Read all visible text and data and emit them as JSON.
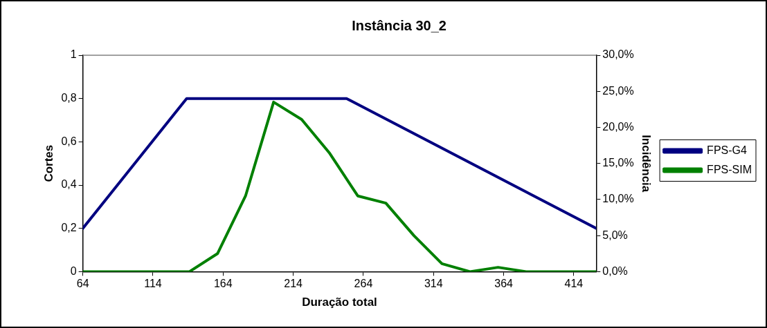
{
  "chart_data": {
    "type": "line",
    "title": "Instância 30_2",
    "xlabel": "Duração total",
    "ylabel": "Cortes",
    "y2label": "Incidência",
    "xlim": [
      64,
      430
    ],
    "xticks": [
      64,
      114,
      164,
      214,
      264,
      314,
      364,
      414
    ],
    "ylim": [
      0,
      1
    ],
    "yticks": [
      0,
      {
        "value": 0.2,
        "label": "0,2"
      },
      {
        "value": 0.4,
        "label": "0,4"
      },
      {
        "value": 0.6,
        "label": "0,6"
      },
      {
        "value": 0.8,
        "label": "0,8"
      },
      1
    ],
    "y2lim": [
      0,
      30
    ],
    "y2ticks": [
      {
        "value": 0,
        "label": "0,0%"
      },
      {
        "value": 5,
        "label": "5,0%"
      },
      {
        "value": 10,
        "label": "10,0%"
      },
      {
        "value": 15,
        "label": "15,0%"
      },
      {
        "value": 20,
        "label": "20,0%"
      },
      {
        "value": 25,
        "label": "25,0%"
      },
      {
        "value": 30,
        "label": "30,0%"
      }
    ],
    "grid": false,
    "legend": "right",
    "marker": "none",
    "line_style": "solid",
    "series": [
      {
        "name": "FPS-G4",
        "color": "#000080",
        "x": [
          64,
          138,
          252,
          430
        ],
        "values": [
          0.2,
          0.8,
          0.8,
          0.2
        ]
      },
      {
        "name": "FPS-SIM",
        "color": "#008000",
        "axis": "y2",
        "x": [
          64,
          80,
          100,
          120,
          140,
          160,
          180,
          200,
          220,
          240,
          260,
          280,
          300,
          320,
          340,
          360,
          380,
          400,
          420,
          430
        ],
        "values": [
          0,
          0,
          0,
          0,
          0,
          2.5,
          10.5,
          23.5,
          21.1,
          16.4,
          10.5,
          9.5,
          5.0,
          1.1,
          0,
          0.6,
          0,
          0,
          0,
          0
        ]
      }
    ]
  }
}
